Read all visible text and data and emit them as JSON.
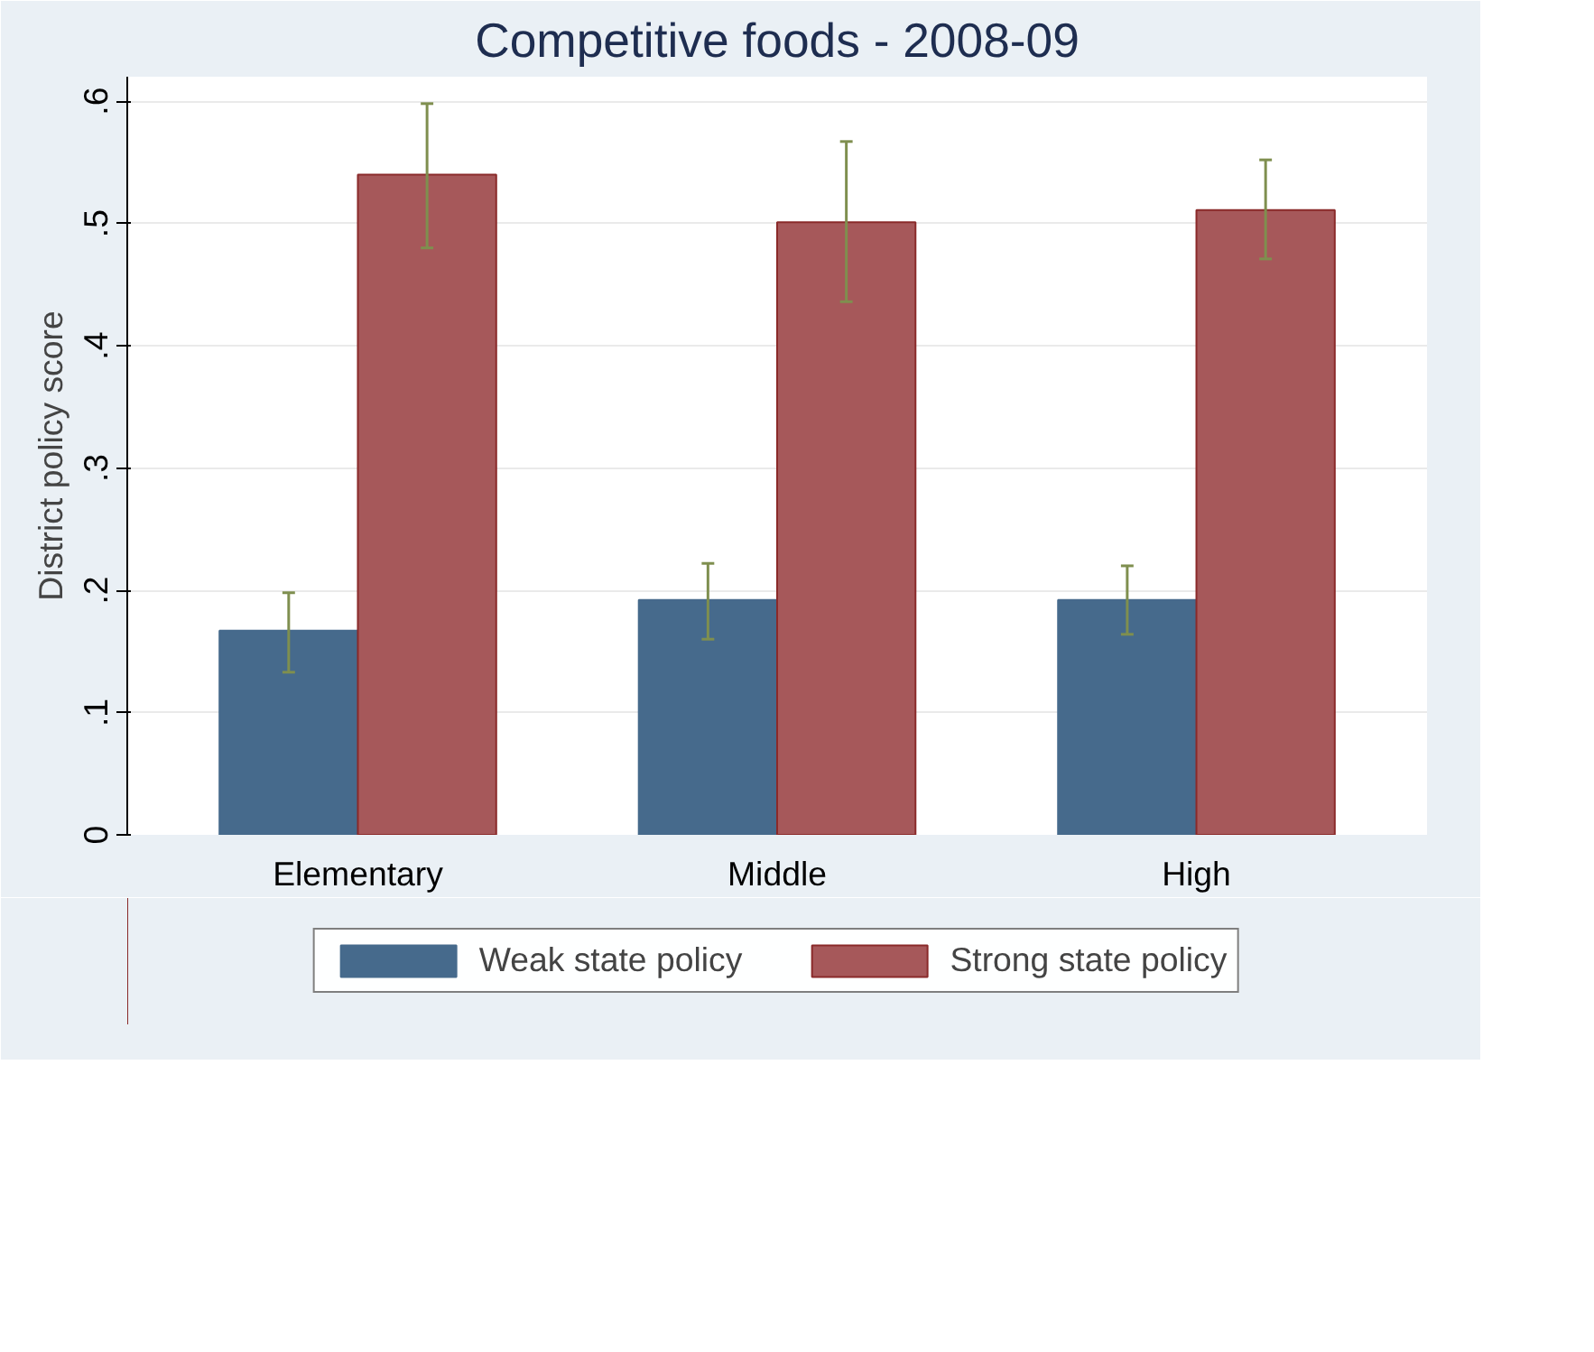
{
  "chart_data": {
    "type": "bar",
    "title": "Competitive foods - 2008-09",
    "ylabel": "District policy score",
    "categories": [
      "Elementary",
      "Middle",
      "High"
    ],
    "series": [
      {
        "name": "Weak state policy",
        "color": "#466a8c",
        "values": [
          0.167,
          0.192,
          0.192
        ],
        "errors": [
          [
            0.133,
            0.198
          ],
          [
            0.16,
            0.222
          ],
          [
            0.164,
            0.22
          ]
        ]
      },
      {
        "name": "Strong state policy",
        "color": "#a6585a",
        "values": [
          0.54,
          0.501,
          0.511
        ],
        "errors": [
          [
            0.48,
            0.598
          ],
          [
            0.436,
            0.567
          ],
          [
            0.471,
            0.552
          ]
        ]
      }
    ],
    "ylim": [
      0,
      0.62
    ],
    "yticks": [
      {
        "value": 0,
        "label": "0"
      },
      {
        "value": 0.1,
        "label": ".1"
      },
      {
        "value": 0.2,
        "label": ".2"
      },
      {
        "value": 0.3,
        "label": ".3"
      },
      {
        "value": 0.4,
        "label": ".4"
      },
      {
        "value": 0.5,
        "label": ".5"
      },
      {
        "value": 0.6,
        "label": ".6"
      }
    ],
    "grid": "y",
    "legend": "bottom"
  }
}
